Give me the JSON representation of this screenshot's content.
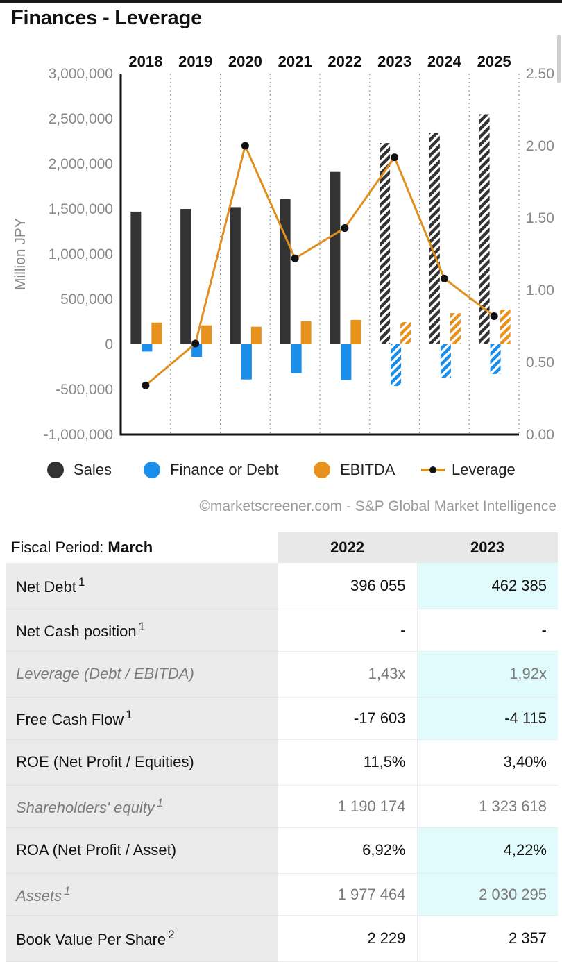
{
  "header": {
    "title": "Finances - Leverage"
  },
  "chart_data": {
    "type": "bar",
    "categories": [
      "2018",
      "2019",
      "2020",
      "2021",
      "2022",
      "2023",
      "2024",
      "2025"
    ],
    "ylabel": "Million JPY",
    "ylim": [
      -1000000,
      3000000
    ],
    "yticks": [
      "3,000,000",
      "2,500,000",
      "2,000,000",
      "1,500,000",
      "1,000,000",
      "500,000",
      "0",
      "-500,000",
      "-1,000,000"
    ],
    "y2lim": [
      0,
      2.5
    ],
    "y2ticks": [
      "2.50",
      "2.00",
      "1.50",
      "1.00",
      "0.50",
      "0.00"
    ],
    "estimate_from_index": 5,
    "series": [
      {
        "name": "Sales",
        "kind": "bar",
        "color": "#333333",
        "values": [
          1470000,
          1500000,
          1520000,
          1610000,
          1910000,
          2230000,
          2340000,
          2550000
        ]
      },
      {
        "name": "Finance or Debt",
        "kind": "bar",
        "color": "#1b8eea",
        "values": [
          -80000,
          -140000,
          -390000,
          -320000,
          -396055,
          -462385,
          -370000,
          -330000
        ]
      },
      {
        "name": "EBITDA",
        "kind": "bar",
        "color": "#e8921e",
        "values": [
          240000,
          210000,
          195000,
          255000,
          270000,
          245000,
          345000,
          385000
        ]
      },
      {
        "name": "Leverage",
        "kind": "line",
        "axis": "right",
        "color": "#e08f1f",
        "values": [
          0.34,
          0.63,
          2.0,
          1.22,
          1.43,
          1.92,
          1.08,
          0.82
        ]
      }
    ],
    "grid": "vertical dotted",
    "legend_position": "bottom",
    "source": "©marketscreener.com - S&P Global Market Intelligence"
  },
  "table": {
    "period_label": "Fiscal Period: ",
    "period_value": "March",
    "columns": [
      "2022",
      "2023"
    ],
    "rows": [
      {
        "label": "Net Debt",
        "sup": "1",
        "italic": false,
        "values": [
          "396 055",
          "462 385"
        ],
        "highlight": true
      },
      {
        "label": "Net Cash position",
        "sup": "1",
        "italic": false,
        "values": [
          "-",
          "-"
        ],
        "highlight": false
      },
      {
        "label": "Leverage (Debt / EBITDA)",
        "sup": "",
        "italic": true,
        "values": [
          "1,43x",
          "1,92x"
        ],
        "highlight": true
      },
      {
        "label": "Free Cash Flow",
        "sup": "1",
        "italic": false,
        "values": [
          "-17 603",
          "-4 115"
        ],
        "highlight": true
      },
      {
        "label": "ROE (Net Profit / Equities)",
        "sup": "",
        "italic": false,
        "values": [
          "11,5%",
          "3,40%"
        ],
        "highlight": false
      },
      {
        "label": "Shareholders' equity",
        "sup": "1",
        "italic": true,
        "values": [
          "1 190 174",
          "1 323 618"
        ],
        "highlight": false
      },
      {
        "label": "ROA (Net Profit / Asset)",
        "sup": "",
        "italic": false,
        "values": [
          "6,92%",
          "4,22%"
        ],
        "highlight": true
      },
      {
        "label": "Assets",
        "sup": "1",
        "italic": true,
        "values": [
          "1 977 464",
          "2 030 295"
        ],
        "highlight": true
      },
      {
        "label": "Book Value Per Share",
        "sup": "2",
        "italic": false,
        "values": [
          "2 229",
          "2 357"
        ],
        "highlight": false
      }
    ]
  }
}
